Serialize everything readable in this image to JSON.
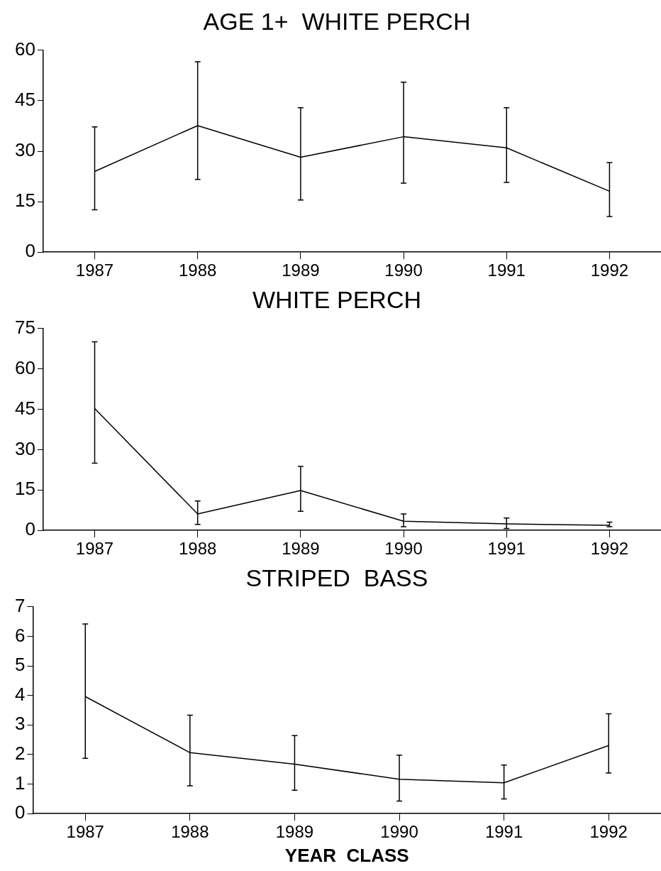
{
  "chart_data": [
    {
      "type": "line",
      "title": "AGE 1+  WHITE PERCH",
      "categories": [
        "1987",
        "1988",
        "1989",
        "1990",
        "1991",
        "1992"
      ],
      "values": [
        24,
        37.6,
        28.2,
        34.3,
        31,
        18.1
      ],
      "errors": [
        [
          12.6,
          37.2
        ],
        [
          21.6,
          56.6
        ],
        [
          15.5,
          42.9
        ],
        [
          20.5,
          50.5
        ],
        [
          20.7,
          42.9
        ],
        [
          10.6,
          26.6
        ]
      ],
      "color": "#000000",
      "ylim": [
        0,
        60
      ],
      "yticks": [
        0,
        15,
        30,
        45,
        60
      ],
      "grid": false,
      "marker": "none"
    },
    {
      "type": "line",
      "title": "WHITE PERCH",
      "categories": [
        "1987",
        "1988",
        "1989",
        "1990",
        "1991",
        "1992"
      ],
      "values": [
        45.3,
        6.1,
        14.8,
        3.4,
        2.4,
        1.9
      ],
      "errors": [
        [
          25,
          70.1
        ],
        [
          2.2,
          10.9
        ],
        [
          7.1,
          23.8
        ],
        [
          1.4,
          6.1
        ],
        [
          0.7,
          4.6
        ],
        [
          1.4,
          3.1
        ]
      ],
      "color": "#000000",
      "ylim": [
        0,
        75
      ],
      "yticks": [
        0,
        15,
        30,
        45,
        60,
        75
      ],
      "grid": false,
      "marker": "none"
    },
    {
      "type": "line",
      "title": "STRIPED  BASS",
      "xlabel": "YEAR  CLASS",
      "categories": [
        "1987",
        "1988",
        "1989",
        "1990",
        "1991",
        "1992"
      ],
      "values": [
        3.96,
        2.06,
        1.67,
        1.16,
        1.04,
        2.3
      ],
      "errors": [
        [
          1.87,
          6.42
        ],
        [
          0.94,
          3.33
        ],
        [
          0.79,
          2.64
        ],
        [
          0.42,
          1.98
        ],
        [
          0.49,
          1.64
        ],
        [
          1.37,
          3.38
        ]
      ],
      "color": "#000000",
      "ylim": [
        0,
        7
      ],
      "yticks": [
        0,
        1,
        2,
        3,
        4,
        5,
        6,
        7
      ],
      "grid": false,
      "marker": "none"
    }
  ]
}
